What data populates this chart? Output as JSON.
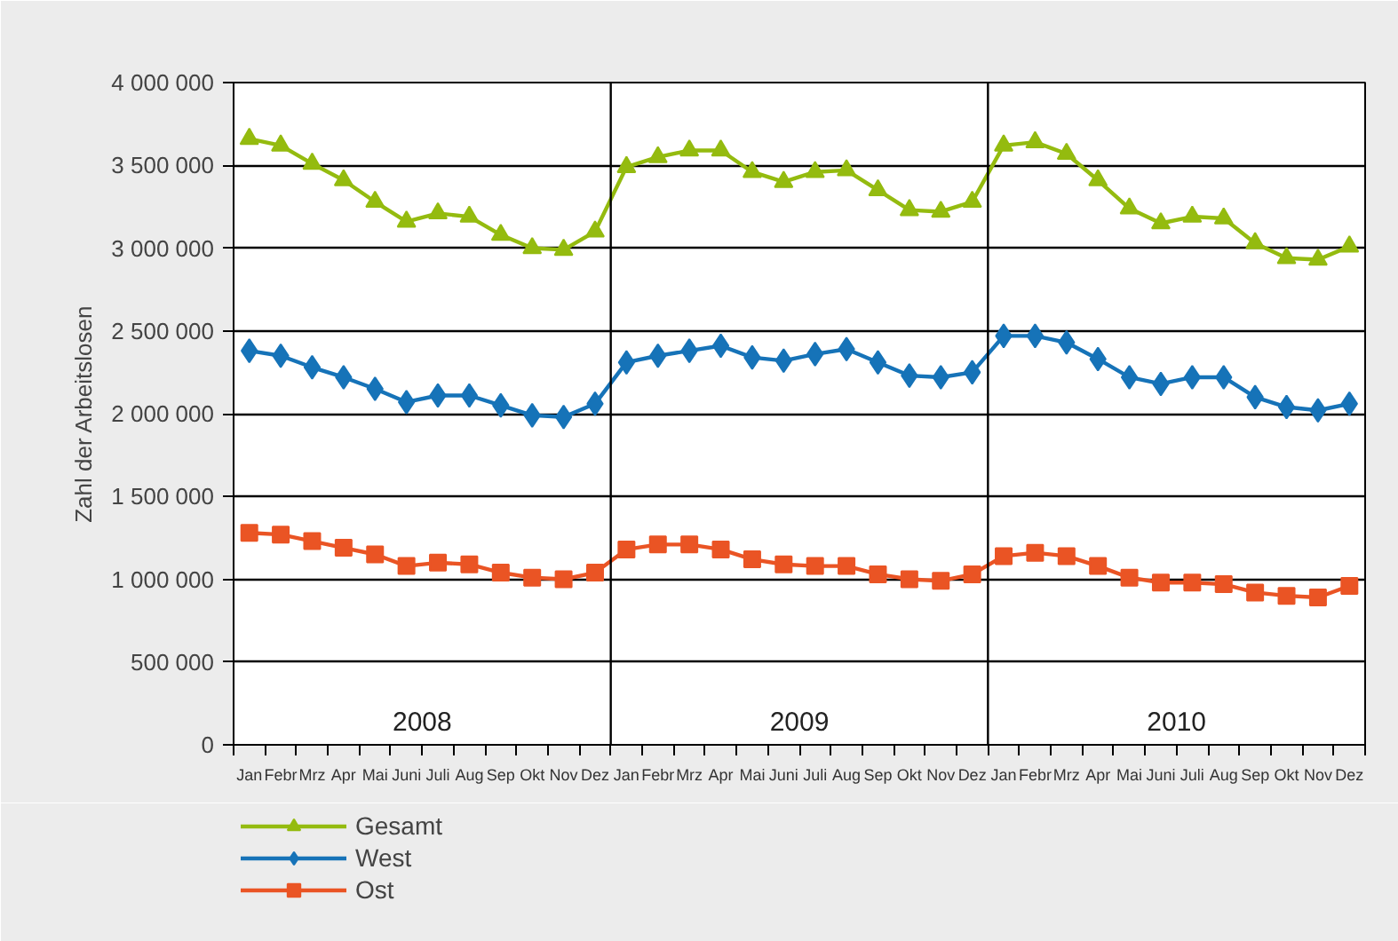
{
  "chart_data": {
    "type": "line",
    "ylabel": "Zahl der Arbeitslosen",
    "categories": [
      "Jan",
      "Febr",
      "Mrz",
      "Apr",
      "Mai",
      "Juni",
      "Juli",
      "Aug",
      "Sep",
      "Okt",
      "Nov",
      "Dez",
      "Jan",
      "Febr",
      "Mrz",
      "Apr",
      "Mai",
      "Juni",
      "Juli",
      "Aug",
      "Sep",
      "Okt",
      "Nov",
      "Dez",
      "Jan",
      "Febr",
      "Mrz",
      "Apr",
      "Mai",
      "Juni",
      "Juli",
      "Aug",
      "Sep",
      "Okt",
      "Nov",
      "Dez"
    ],
    "annotations": [
      "2008",
      "2009",
      "2010"
    ],
    "ylim": [
      0,
      4000000
    ],
    "yticks": [
      0,
      {
        "value": 500000,
        "label": "500 000"
      },
      {
        "value": 1000000,
        "label": "1 000 000"
      },
      {
        "value": 1500000,
        "label": "1 500 000"
      },
      {
        "value": 2000000,
        "label": "2 000 000"
      },
      {
        "value": 2500000,
        "label": "2 500 000"
      },
      {
        "value": 3000000,
        "label": "3 000 000"
      },
      {
        "value": 3500000,
        "label": "3 500 000"
      },
      {
        "value": 4000000,
        "label": "4 000 000"
      }
    ],
    "grid": "y",
    "legend": "bottom",
    "line_style": "solid",
    "series": [
      {
        "name": "Gesamt",
        "color": "#94bb0f",
        "marker": "triangle",
        "values": [
          3660000,
          3620000,
          3510000,
          3410000,
          3280000,
          3160000,
          3210000,
          3190000,
          3080000,
          3000000,
          2990000,
          3100000,
          3490000,
          3550000,
          3590000,
          3590000,
          3460000,
          3400000,
          3460000,
          3470000,
          3350000,
          3230000,
          3220000,
          3280000,
          3620000,
          3640000,
          3570000,
          3410000,
          3240000,
          3150000,
          3190000,
          3180000,
          3030000,
          2940000,
          2930000,
          3010000
        ]
      },
      {
        "name": "West",
        "color": "#1673b8",
        "marker": "diamond",
        "values": [
          2380000,
          2350000,
          2280000,
          2220000,
          2150000,
          2070000,
          2110000,
          2110000,
          2050000,
          1990000,
          1980000,
          2060000,
          2310000,
          2350000,
          2380000,
          2410000,
          2340000,
          2320000,
          2360000,
          2390000,
          2310000,
          2230000,
          2220000,
          2250000,
          2470000,
          2470000,
          2430000,
          2330000,
          2220000,
          2180000,
          2220000,
          2220000,
          2100000,
          2040000,
          2020000,
          2060000
        ]
      },
      {
        "name": "Ost",
        "color": "#ea5424",
        "marker": "square",
        "values": [
          1280000,
          1270000,
          1230000,
          1190000,
          1150000,
          1080000,
          1100000,
          1090000,
          1040000,
          1010000,
          1000000,
          1040000,
          1180000,
          1210000,
          1210000,
          1180000,
          1120000,
          1090000,
          1080000,
          1080000,
          1030000,
          1000000,
          990000,
          1030000,
          1140000,
          1160000,
          1140000,
          1080000,
          1010000,
          980000,
          980000,
          970000,
          920000,
          900000,
          890000,
          960000
        ]
      }
    ]
  }
}
